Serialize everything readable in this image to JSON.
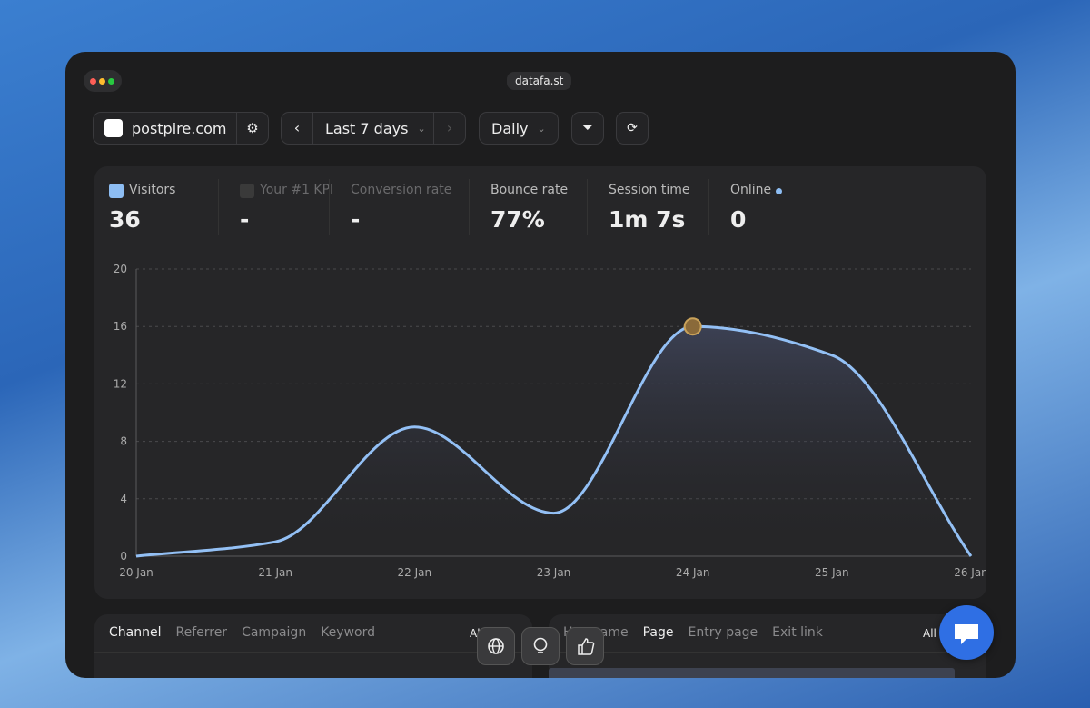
{
  "window": {
    "title": "datafa.st"
  },
  "toolbar": {
    "site": "postpire.com",
    "range": "Last 7 days",
    "interval": "Daily"
  },
  "metrics": [
    {
      "label": "Visitors",
      "value": "36"
    },
    {
      "label": "Your #1 KPI",
      "value": "-"
    },
    {
      "label": "Conversion rate",
      "value": "-"
    },
    {
      "label": "Bounce rate",
      "value": "77%"
    },
    {
      "label": "Session time",
      "value": "1m 7s"
    },
    {
      "label": "Online",
      "value": "0"
    }
  ],
  "chart_data": {
    "type": "line",
    "categories": [
      "20 Jan",
      "21 Jan",
      "22 Jan",
      "23 Jan",
      "24 Jan",
      "25 Jan",
      "26 Jan"
    ],
    "values": [
      0,
      1,
      9,
      3,
      16,
      14,
      0
    ],
    "color": "#93c0f5",
    "ylim": [
      0,
      20
    ],
    "yticks": [
      0,
      4,
      8,
      12,
      16,
      20
    ],
    "grid": true
  },
  "left_panel": {
    "tabs": [
      "Channel",
      "Referrer",
      "Campaign",
      "Keyword"
    ],
    "filter": "All"
  },
  "right_panel": {
    "tabs": [
      "Hostname",
      "Page",
      "Entry page",
      "Exit link"
    ],
    "filter": "All"
  }
}
